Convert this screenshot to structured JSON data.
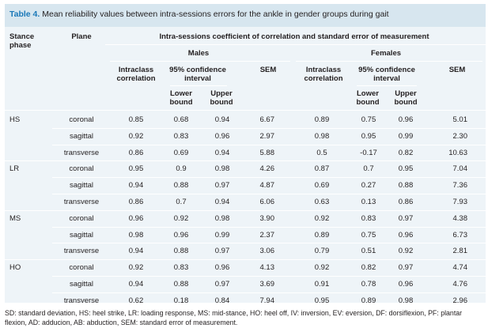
{
  "table": {
    "title_label": "Table 4.",
    "title_text": "Mean reliability values between intra-sessions errors for the ankle in gender groups during gait",
    "headers": {
      "stance_phase": [
        "Stance",
        "phase"
      ],
      "plane": "Plane",
      "group_header": "Intra-sessions coefficient of correlation and standard error of measurement",
      "males": "Males",
      "females": "Females",
      "intraclass": [
        "Intraclass",
        "correlation"
      ],
      "ci": [
        "95% confidence",
        "interval"
      ],
      "lower": [
        "Lower",
        "bound"
      ],
      "upper": [
        "Upper",
        "bound"
      ],
      "sem": "SEM"
    },
    "rows": [
      {
        "phase": "HS",
        "plane": "coronal",
        "m": [
          "0.85",
          "0.68",
          "0.94",
          "6.67"
        ],
        "f": [
          "0.89",
          "0.75",
          "0.96",
          "5.01"
        ]
      },
      {
        "phase": "",
        "plane": "sagittal",
        "m": [
          "0.92",
          "0.83",
          "0.96",
          "2.97"
        ],
        "f": [
          "0.98",
          "0.95",
          "0.99",
          "2.30"
        ]
      },
      {
        "phase": "",
        "plane": "transverse",
        "m": [
          "0.86",
          "0.69",
          "0.94",
          "5.88"
        ],
        "f": [
          "0.5",
          "-0.17",
          "0.82",
          "10.63"
        ]
      },
      {
        "phase": "LR",
        "plane": "coronal",
        "m": [
          "0.95",
          "0.9",
          "0.98",
          "4.26"
        ],
        "f": [
          "0.87",
          "0.7",
          "0.95",
          "7.04"
        ]
      },
      {
        "phase": "",
        "plane": "sagittal",
        "m": [
          "0.94",
          "0.88",
          "0.97",
          "4.87"
        ],
        "f": [
          "0.69",
          "0.27",
          "0.88",
          "7.36"
        ]
      },
      {
        "phase": "",
        "plane": "transverse",
        "m": [
          "0.86",
          "0.7",
          "0.94",
          "6.06"
        ],
        "f": [
          "0.63",
          "0.13",
          "0.86",
          "7.93"
        ]
      },
      {
        "phase": "MS",
        "plane": "coronal",
        "m": [
          "0.96",
          "0.92",
          "0.98",
          "3.90"
        ],
        "f": [
          "0.92",
          "0.83",
          "0.97",
          "4.38"
        ]
      },
      {
        "phase": "",
        "plane": "sagittal",
        "m": [
          "0.98",
          "0.96",
          "0.99",
          "2.37"
        ],
        "f": [
          "0.89",
          "0.75",
          "0.96",
          "6.73"
        ]
      },
      {
        "phase": "",
        "plane": "transverse",
        "m": [
          "0.94",
          "0.88",
          "0.97",
          "3.06"
        ],
        "f": [
          "0.79",
          "0.51",
          "0.92",
          "2.81"
        ]
      },
      {
        "phase": "HO",
        "plane": "coronal",
        "m": [
          "0.92",
          "0.83",
          "0.96",
          "4.13"
        ],
        "f": [
          "0.92",
          "0.82",
          "0.97",
          "4.74"
        ]
      },
      {
        "phase": "",
        "plane": "sagittal",
        "m": [
          "0.94",
          "0.88",
          "0.97",
          "3.69"
        ],
        "f": [
          "0.91",
          "0.78",
          "0.96",
          "4.76"
        ]
      },
      {
        "phase": "",
        "plane": "transverse",
        "m": [
          "0.62",
          "0.18",
          "0.84",
          "7.94"
        ],
        "f": [
          "0.95",
          "0.89",
          "0.98",
          "2.96"
        ]
      }
    ],
    "footnote": "SD: standard deviation, HS: heel strike, LR: loading response, MS: mid-stance, HO: heel off, IV: inversion, EV: eversion, DF: dorsiflexion, PF: plantar flexion, AD: adducion, AB: abduction, SEM: standard error of measurement."
  },
  "colors": {
    "title_bar_bg": "#d7e6ef",
    "table_bg": "#eef4f8",
    "title_label": "#1a78b8",
    "rule": "#ffffff"
  }
}
